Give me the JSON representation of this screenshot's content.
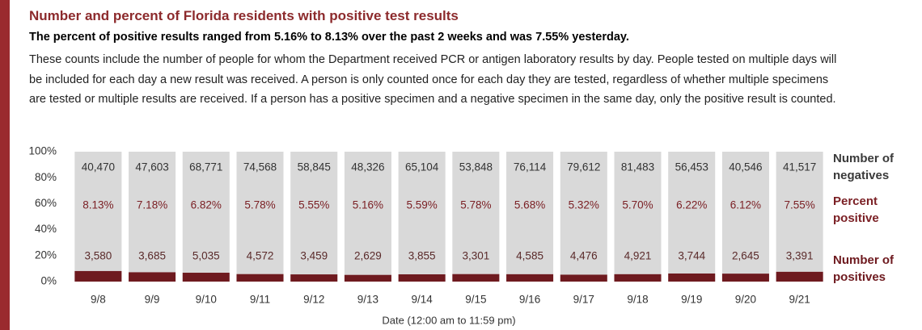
{
  "chart_data": {
    "type": "bar",
    "title": "Number and percent of Florida residents with positive test results",
    "subtitle": "The percent of positive results ranged from 5.16% to 8.13% over the past 2 weeks and was 7.55% yesterday.",
    "note": "These counts include the number of people for whom the Department received PCR or antigen laboratory results by day. People tested on multiple days will be included for each day a new result was received. A person is only counted once for each day they are tested, regardless of whether multiple specimens are tested or multiple results are received. If a person has a positive specimen and a negative specimen in the same day, only the positive result is counted.",
    "x_label": "Date (12:00 am to 11:59 pm)",
    "categories": [
      "9/8",
      "9/9",
      "9/10",
      "9/11",
      "9/12",
      "9/13",
      "9/14",
      "9/15",
      "9/16",
      "9/17",
      "9/18",
      "9/19",
      "9/20",
      "9/21"
    ],
    "series": [
      {
        "name": "Number of negatives",
        "color": "#d9d9d9",
        "values": [
          40470,
          47603,
          68771,
          74568,
          58845,
          48326,
          65104,
          53848,
          76114,
          79612,
          81483,
          56453,
          40546,
          41517
        ],
        "value_labels": [
          "40,470",
          "47,603",
          "68,771",
          "74,568",
          "58,845",
          "48,326",
          "65,104",
          "53,848",
          "76,114",
          "79,612",
          "81,483",
          "56,453",
          "40,546",
          "41,517"
        ]
      },
      {
        "name": "Percent positive",
        "color": "#7b2025",
        "values": [
          8.13,
          7.18,
          6.82,
          5.78,
          5.55,
          5.16,
          5.59,
          5.78,
          5.68,
          5.32,
          5.7,
          6.22,
          6.12,
          7.55
        ],
        "value_labels": [
          "8.13%",
          "7.18%",
          "6.82%",
          "5.78%",
          "5.55%",
          "5.16%",
          "5.59%",
          "5.78%",
          "5.68%",
          "5.32%",
          "5.70%",
          "6.22%",
          "6.12%",
          "7.55%"
        ]
      },
      {
        "name": "Number of positives",
        "color": "#6e1a1f",
        "values": [
          3580,
          3685,
          5035,
          4572,
          3459,
          2629,
          3855,
          3301,
          4585,
          4476,
          4921,
          3744,
          2645,
          3391
        ],
        "value_labels": [
          "3,580",
          "3,685",
          "5,035",
          "4,572",
          "3,459",
          "2,629",
          "3,855",
          "3,301",
          "4,585",
          "4,476",
          "4,921",
          "3,744",
          "2,645",
          "3,391"
        ]
      }
    ],
    "ylim": [
      0,
      100
    ],
    "yticks": [
      {
        "value": 0,
        "label": "0%"
      },
      {
        "value": 20,
        "label": "20%"
      },
      {
        "value": 40,
        "label": "40%"
      },
      {
        "value": 60,
        "label": "60%"
      },
      {
        "value": 80,
        "label": "80%"
      },
      {
        "value": 100,
        "label": "100%"
      }
    ]
  }
}
